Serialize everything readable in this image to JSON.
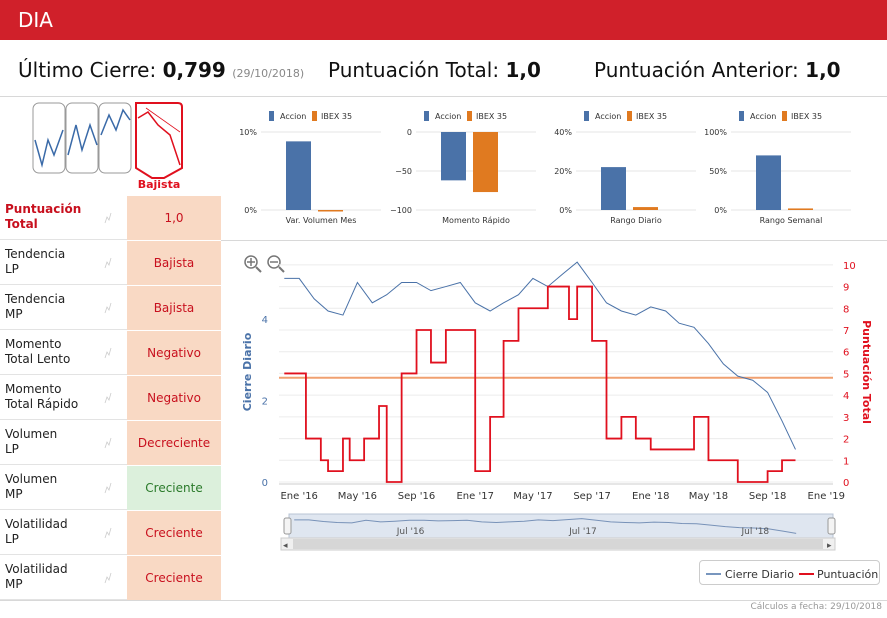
{
  "header": {
    "title": "DIA"
  },
  "summary": {
    "last_close_label": "Último Cierre:",
    "last_close_value": "0,799",
    "last_close_date": "(29/10/2018)",
    "total_score_label": "Puntuación Total:",
    "total_score_value": "1,0",
    "prev_score_label": "Puntuación Anterior:",
    "prev_score_value": "1,0"
  },
  "trend_badge": "Bajista",
  "indicators": [
    {
      "label_1": "Puntuación",
      "label_2": "Total",
      "mini": "",
      "value": "1,0",
      "status": "neutral"
    },
    {
      "label_1": "Tendencia",
      "label_2": "LP",
      "mini": "",
      "value": "Bajista",
      "status": "bad"
    },
    {
      "label_1": "Tendencia",
      "label_2": "MP",
      "mini": "",
      "value": "Bajista",
      "status": "bad"
    },
    {
      "label_1": "Momento",
      "label_2": "Total Lento",
      "mini": "",
      "value": "Negativo",
      "status": "bad"
    },
    {
      "label_1": "Momento",
      "label_2": "Total Rápido",
      "mini": "",
      "value": "Negativo",
      "status": "bad"
    },
    {
      "label_1": "Volumen",
      "label_2": "LP",
      "mini": "",
      "value": "Decreciente",
      "status": "bad"
    },
    {
      "label_1": "Volumen",
      "label_2": "MP",
      "mini": "",
      "value": "Creciente",
      "status": "good"
    },
    {
      "label_1": "Volatilidad",
      "label_2": "LP",
      "mini": "",
      "value": "Creciente",
      "status": "bad"
    },
    {
      "label_1": "Volatilidad",
      "label_2": "MP",
      "mini": "",
      "value": "Creciente",
      "status": "bad"
    }
  ],
  "chart_data": [
    {
      "type": "bar",
      "legend": [
        "Accion",
        "IBEX 35"
      ],
      "xlabel": "Var. Volumen Mes",
      "ylim": [
        0,
        10
      ],
      "ticks": [
        "10%",
        "0%"
      ],
      "series": [
        {
          "name": "Accion",
          "values": [
            8.8
          ]
        },
        {
          "name": "IBEX 35",
          "values": [
            0
          ]
        }
      ]
    },
    {
      "type": "bar",
      "legend": [
        "Accion",
        "IBEX 35"
      ],
      "xlabel": "Momento Rápido",
      "ylim": [
        -100,
        0
      ],
      "ticks": [
        "0",
        "−50",
        "−100"
      ],
      "series": [
        {
          "name": "Accion",
          "values": [
            -62
          ]
        },
        {
          "name": "IBEX 35",
          "values": [
            -77
          ]
        }
      ]
    },
    {
      "type": "bar",
      "legend": [
        "Accion",
        "IBEX 35"
      ],
      "xlabel": "Rango Diario",
      "ylim": [
        0,
        40
      ],
      "ticks": [
        "40%",
        "20%",
        "0%"
      ],
      "series": [
        {
          "name": "Accion",
          "values": [
            22
          ]
        },
        {
          "name": "IBEX 35",
          "values": [
            1.5
          ]
        }
      ]
    },
    {
      "type": "bar",
      "legend": [
        "Accion",
        "IBEX 35"
      ],
      "xlabel": "Rango Semanal",
      "ylim": [
        0,
        100
      ],
      "ticks": [
        "100%",
        "50%",
        "0%"
      ],
      "series": [
        {
          "name": "Accion",
          "values": [
            70
          ]
        },
        {
          "name": "IBEX 35",
          "values": [
            2
          ]
        }
      ]
    },
    {
      "type": "line",
      "left_axis_label": "Cierre Diario",
      "right_axis_label": "Puntuación Total",
      "left_ticks": [
        "0",
        "2",
        "4"
      ],
      "right_ticks": [
        "0",
        "1",
        "2",
        "3",
        "4",
        "5",
        "6",
        "7",
        "8",
        "9",
        "10"
      ],
      "x_ticks": [
        "Ene '16",
        "May '16",
        "Sep '16",
        "Ene '17",
        "May '17",
        "Sep '17",
        "Ene '18",
        "May '18",
        "Sep '18",
        "Ene '19"
      ],
      "navigator_ticks": [
        "Jul '16",
        "Jul '17",
        "Jul '18"
      ],
      "legend": [
        "Cierre Diario",
        "Puntuación"
      ],
      "colors": {
        "price": "#4a72a8",
        "score": "#e0101e",
        "threshold": "#f0a070"
      },
      "threshold_score": 4.8,
      "price_series": {
        "x": [
          "2015-12-01",
          "2016-01-01",
          "2016-02-01",
          "2016-03-01",
          "2016-04-01",
          "2016-05-01",
          "2016-06-01",
          "2016-07-01",
          "2016-08-01",
          "2016-09-01",
          "2016-10-01",
          "2016-11-01",
          "2016-12-01",
          "2017-01-01",
          "2017-02-01",
          "2017-03-01",
          "2017-04-01",
          "2017-05-01",
          "2017-06-01",
          "2017-07-01",
          "2017-08-01",
          "2017-09-01",
          "2017-10-01",
          "2017-11-01",
          "2017-12-01",
          "2018-01-01",
          "2018-02-01",
          "2018-03-01",
          "2018-04-01",
          "2018-05-01",
          "2018-06-01",
          "2018-07-01",
          "2018-08-01",
          "2018-09-01",
          "2018-10-01",
          "2018-10-29"
        ],
        "y": [
          5.0,
          5.0,
          4.5,
          4.2,
          4.1,
          4.9,
          4.4,
          4.6,
          4.9,
          4.9,
          4.7,
          4.8,
          4.9,
          4.4,
          4.2,
          4.4,
          4.6,
          5.0,
          4.8,
          5.1,
          5.4,
          4.9,
          4.4,
          4.2,
          4.1,
          4.3,
          4.2,
          3.9,
          3.8,
          3.4,
          2.9,
          2.6,
          2.5,
          2.2,
          1.5,
          0.8
        ]
      },
      "score_series": {
        "x": [
          "2015-12-01",
          "2016-01-15",
          "2016-02-15",
          "2016-03-01",
          "2016-04-01",
          "2016-04-15",
          "2016-05-15",
          "2016-06-15",
          "2016-07-01",
          "2016-08-01",
          "2016-09-01",
          "2016-10-01",
          "2016-11-01",
          "2016-12-01",
          "2017-01-01",
          "2017-02-01",
          "2017-03-01",
          "2017-04-01",
          "2017-05-01",
          "2017-06-01",
          "2017-07-15",
          "2017-08-01",
          "2017-09-01",
          "2017-10-01",
          "2017-11-01",
          "2017-12-01",
          "2018-01-01",
          "2018-02-01",
          "2018-03-01",
          "2018-04-01",
          "2018-05-01",
          "2018-06-01",
          "2018-07-01",
          "2018-08-01",
          "2018-09-01",
          "2018-10-01",
          "2018-10-29"
        ],
        "y": [
          5,
          2,
          1,
          0.5,
          2,
          1,
          2,
          3.5,
          0,
          5,
          7,
          5.5,
          7,
          7,
          0.5,
          3,
          6.5,
          8,
          8,
          9,
          7.5,
          9,
          6.5,
          2,
          3,
          2,
          1.5,
          1.5,
          1.5,
          3,
          1,
          1,
          0,
          0,
          0.5,
          1,
          1
        ]
      }
    }
  ],
  "footer": "Cálculos a fecha: 29/10/2018"
}
